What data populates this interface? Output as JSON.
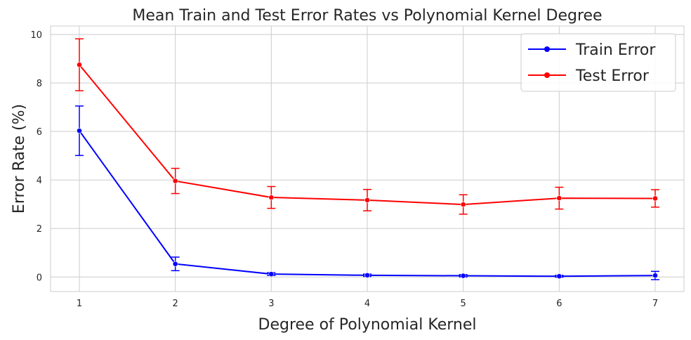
{
  "chart_data": {
    "type": "line",
    "title": "Mean Train and Test Error Rates vs Polynomial Kernel Degree",
    "xlabel": "Degree of Polynomial Kernel",
    "ylabel": "Error Rate (%)",
    "x": [
      1,
      2,
      3,
      4,
      5,
      6,
      7
    ],
    "x_tick_labels": [
      "1",
      "2",
      "3",
      "4",
      "5",
      "6",
      "7"
    ],
    "y_ticks": [
      0,
      2,
      4,
      6,
      8,
      10
    ],
    "y_tick_labels": [
      "0",
      "2",
      "4",
      "6",
      "8",
      "10"
    ],
    "xlim": [
      0.7,
      7.3
    ],
    "ylim": [
      -0.6,
      10.35
    ],
    "grid": true,
    "legend_position": "top-right",
    "series": [
      {
        "name": "Train Error",
        "color": "#0000ff",
        "values": [
          6.03,
          0.54,
          0.12,
          0.07,
          0.05,
          0.03,
          0.06
        ],
        "error": [
          1.02,
          0.28,
          0.06,
          0.05,
          0.05,
          0.04,
          0.17
        ]
      },
      {
        "name": "Test Error",
        "color": "#ff0000",
        "values": [
          8.75,
          3.96,
          3.28,
          3.17,
          2.99,
          3.25,
          3.24
        ],
        "error": [
          1.07,
          0.52,
          0.45,
          0.44,
          0.4,
          0.45,
          0.36
        ]
      }
    ]
  }
}
